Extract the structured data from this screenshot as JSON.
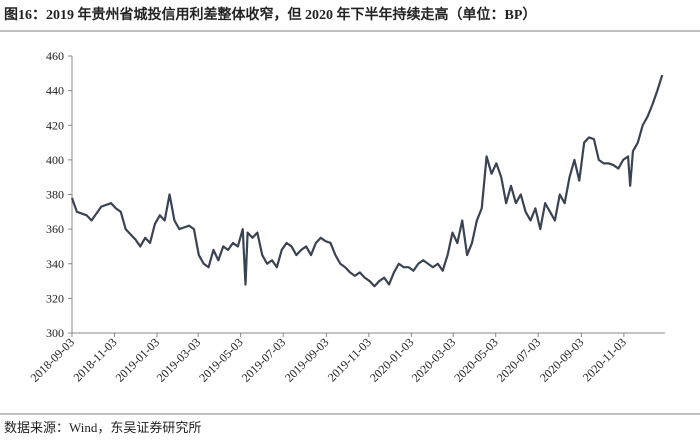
{
  "chart_data": {
    "type": "line",
    "title": "图16：2019 年贵州省城投信用利差整体收窄，但 2020 年下半年持续走高（单位：BP）",
    "source": "数据来源：Wind，东吴证券研究所",
    "x": [
      "2018-09-03",
      "2018-09-10",
      "2018-09-24",
      "2018-10-01",
      "2018-10-15",
      "2018-10-29",
      "2018-11-05",
      "2018-11-12",
      "2018-11-19",
      "2018-11-26",
      "2018-12-03",
      "2018-12-10",
      "2018-12-17",
      "2018-12-24",
      "2018-12-31",
      "2019-01-07",
      "2019-01-14",
      "2019-01-21",
      "2019-01-28",
      "2019-02-04",
      "2019-02-18",
      "2019-02-25",
      "2019-03-04",
      "2019-03-11",
      "2019-03-18",
      "2019-03-25",
      "2019-04-01",
      "2019-04-08",
      "2019-04-15",
      "2019-04-22",
      "2019-04-29",
      "2019-05-06",
      "2019-05-10",
      "2019-05-13",
      "2019-05-20",
      "2019-05-27",
      "2019-06-03",
      "2019-06-10",
      "2019-06-17",
      "2019-06-24",
      "2019-07-01",
      "2019-07-08",
      "2019-07-15",
      "2019-07-22",
      "2019-07-29",
      "2019-08-05",
      "2019-08-12",
      "2019-08-19",
      "2019-08-26",
      "2019-09-02",
      "2019-09-09",
      "2019-09-16",
      "2019-09-23",
      "2019-09-30",
      "2019-10-07",
      "2019-10-14",
      "2019-10-21",
      "2019-10-28",
      "2019-11-04",
      "2019-11-11",
      "2019-11-18",
      "2019-11-25",
      "2019-12-02",
      "2019-12-09",
      "2019-12-16",
      "2019-12-23",
      "2019-12-30",
      "2020-01-06",
      "2020-01-13",
      "2020-01-20",
      "2020-02-03",
      "2020-02-10",
      "2020-02-17",
      "2020-02-24",
      "2020-03-02",
      "2020-03-09",
      "2020-03-16",
      "2020-03-23",
      "2020-03-30",
      "2020-04-06",
      "2020-04-13",
      "2020-04-20",
      "2020-04-27",
      "2020-05-04",
      "2020-05-11",
      "2020-05-18",
      "2020-05-25",
      "2020-06-01",
      "2020-06-08",
      "2020-06-15",
      "2020-06-22",
      "2020-06-29",
      "2020-07-06",
      "2020-07-13",
      "2020-07-20",
      "2020-07-27",
      "2020-08-03",
      "2020-08-10",
      "2020-08-17",
      "2020-08-24",
      "2020-08-31",
      "2020-09-07",
      "2020-09-14",
      "2020-09-21",
      "2020-09-28",
      "2020-10-05",
      "2020-10-12",
      "2020-10-19",
      "2020-10-26",
      "2020-11-02",
      "2020-11-09",
      "2020-11-12",
      "2020-11-16",
      "2020-11-23",
      "2020-11-30",
      "2020-12-07",
      "2020-12-14",
      "2020-12-21",
      "2020-12-28"
    ],
    "series": [
      {
        "name": "贵州省城投信用利差",
        "color": "#3a4354",
        "values": [
          378,
          370,
          368,
          365,
          373,
          375,
          372,
          370,
          360,
          357,
          354,
          350,
          355,
          352,
          363,
          368,
          365,
          380,
          365,
          360,
          362,
          360,
          345,
          340,
          338,
          348,
          342,
          350,
          348,
          352,
          350,
          360,
          328,
          358,
          355,
          358,
          345,
          340,
          342,
          338,
          348,
          352,
          350,
          345,
          348,
          350,
          345,
          352,
          355,
          353,
          352,
          345,
          340,
          338,
          335,
          333,
          335,
          332,
          330,
          327,
          330,
          332,
          328,
          335,
          340,
          338,
          338,
          336,
          340,
          342,
          338,
          340,
          336,
          345,
          358,
          352,
          365,
          345,
          352,
          365,
          372,
          402,
          392,
          398,
          390,
          375,
          385,
          375,
          380,
          370,
          365,
          372,
          360,
          375,
          370,
          365,
          380,
          375,
          390,
          400,
          388,
          410,
          413,
          412,
          400,
          398,
          398,
          397,
          395,
          400,
          402,
          385,
          405,
          410,
          420,
          425,
          432,
          440,
          449
        ]
      }
    ],
    "xlim": [
      "2018-09-03",
      "2021-01-01"
    ],
    "xticks": [
      "2018-09-03",
      "2018-11-03",
      "2019-01-03",
      "2019-03-03",
      "2019-05-03",
      "2019-07-03",
      "2019-09-03",
      "2019-11-03",
      "2020-01-03",
      "2020-03-03",
      "2020-05-03",
      "2020-07-03",
      "2020-09-03",
      "2020-11-03"
    ],
    "ylim": [
      300,
      460
    ],
    "yticks": [
      300,
      320,
      340,
      360,
      380,
      400,
      420,
      440,
      460
    ],
    "grid": false
  }
}
